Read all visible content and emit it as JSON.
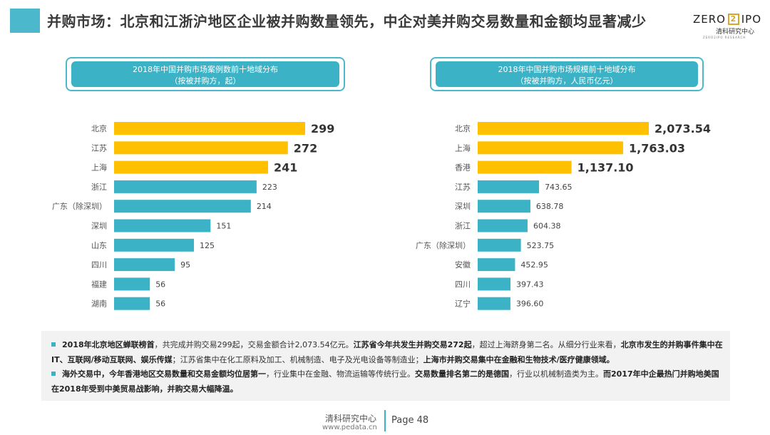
{
  "header": {
    "title": "并购市场：北京和江浙沪地区企业被并购数量领先，中企对美并购交易数量和金额均显著减少",
    "logo_left": "ZERO",
    "logo_mark": "2",
    "logo_right": "IPO",
    "logo_sub": "清科研究中心",
    "logo_tiny": "ZERO2IPO RESEARCH"
  },
  "colors": {
    "accent": "#4bb8cc",
    "highlight_bar": "#ffc000",
    "normal_bar": "#3cb2c6"
  },
  "chart_data": [
    {
      "type": "bar",
      "orientation": "horizontal",
      "title": "2018年中国并购市场案例数前十地域分布",
      "subtitle": "（按被并购方，起）",
      "categories": [
        "北京",
        "江苏",
        "上海",
        "浙江",
        "广东（除深圳）",
        "深圳",
        "山东",
        "四川",
        "福建",
        "湖南"
      ],
      "values": [
        299,
        272,
        241,
        223,
        214,
        151,
        125,
        95,
        56,
        56
      ],
      "labels": [
        "299",
        "272",
        "241",
        "223",
        "214",
        "151",
        "125",
        "95",
        "56",
        "56"
      ],
      "highlight_top": 3,
      "xlim": [
        0,
        299
      ]
    },
    {
      "type": "bar",
      "orientation": "horizontal",
      "title": "2018年中国并购市场规模前十地域分布",
      "subtitle": "（按被并购方，人民币亿元）",
      "categories": [
        "北京",
        "上海",
        "香港",
        "江苏",
        "深圳",
        "浙江",
        "广东（除深圳）",
        "安徽",
        "四川",
        "辽宁"
      ],
      "values": [
        2073.54,
        1763.03,
        1137.1,
        743.65,
        638.78,
        604.38,
        523.75,
        452.95,
        397.43,
        396.6
      ],
      "labels": [
        "2,073.54",
        "1,763.03",
        "1,137.10",
        "743.65",
        "638.78",
        "604.38",
        "523.75",
        "452.95",
        "397.43",
        "396.60"
      ],
      "highlight_top": 3,
      "xlim": [
        0,
        2073.54
      ]
    }
  ],
  "notes": {
    "n1_b1": "2018年北京地区蝉联榜首",
    "n1_t1": "，共完成并购交易299起，交易金额合计2,073.54亿元。",
    "n1_b2": "江苏省今年共发生并购交易272起",
    "n1_t2": "，超过上海跻身第二名。从细分行业来看，",
    "n1_b3": "北京市发生的并购事件集中在IT、互联网/移动互联网、娱乐传媒",
    "n1_t3": "；江苏省集中在化工原料及加工、机械制造、电子及光电设备等制造业；",
    "n1_b4": "上海市并购交易集中在金融和生物技术/医疗健康领域。",
    "n2_b1": "海外交易中，今年香港地区交易数量和交易金额均位居第一",
    "n2_t1": "，行业集中在金融、物流运输等传统行业。",
    "n2_b2": "交易数量排名第二的是德国",
    "n2_t2": "，行业以机械制造类为主。",
    "n2_b3": "而2017年中企最热门并购地美国在2018年受到中美贸易战影响，并购交易大幅降温。"
  },
  "footer": {
    "org": "清科研究中心",
    "url": "www.pedata.cn",
    "page": "Page 48"
  }
}
